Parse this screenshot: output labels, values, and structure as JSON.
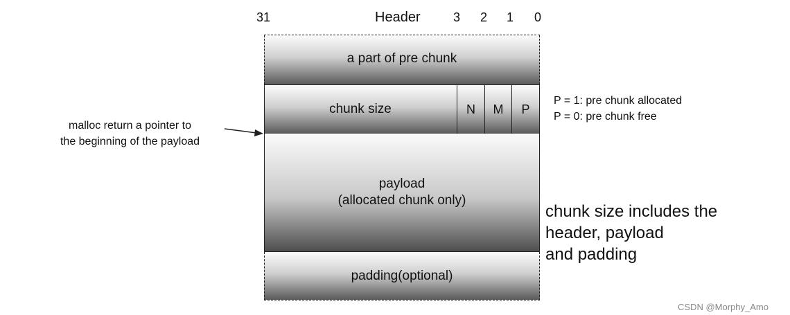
{
  "header": {
    "bit_31": "31",
    "title": "Header",
    "bit_3": "3",
    "bit_2": "2",
    "bit_1": "1",
    "bit_0": "0"
  },
  "blocks": {
    "pre_chunk": "a part of pre chunk",
    "chunk_size": "chunk size",
    "flag_n": "N",
    "flag_m": "M",
    "flag_p": "P",
    "payload_line1": "payload",
    "payload_line2": "(allocated chunk only)",
    "padding": "padding(optional)"
  },
  "annotations": {
    "pointer_line1": "malloc return a pointer to",
    "pointer_line2": "the beginning of the payload",
    "p1": "P = 1: pre chunk allocated",
    "p0": "P = 0: pre chunk free",
    "size_line1": "chunk size includes the",
    "size_line2": "header, payload",
    "size_line3": "and padding"
  },
  "watermark": "CSDN @Morphy_Amo"
}
